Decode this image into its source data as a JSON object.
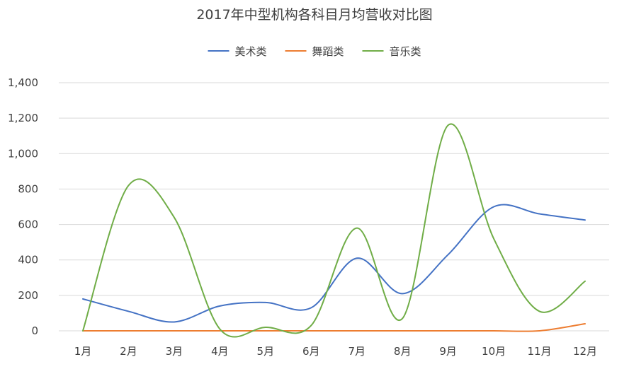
{
  "chart_data": {
    "type": "line",
    "title": "2017年中型机构各科目月均营收对比图",
    "xlabel": "",
    "ylabel": "",
    "categories": [
      "1月",
      "2月",
      "3月",
      "4月",
      "5月",
      "6月",
      "7月",
      "8月",
      "9月",
      "10月",
      "11月",
      "12月"
    ],
    "series": [
      {
        "name": "美术类",
        "color": "#4472c4",
        "values": [
          180,
          110,
          50,
          140,
          160,
          130,
          410,
          210,
          430,
          700,
          660,
          625
        ]
      },
      {
        "name": "舞蹈类",
        "color": "#ed7d31",
        "values": [
          0,
          0,
          0,
          0,
          0,
          0,
          0,
          0,
          0,
          0,
          0,
          40
        ]
      },
      {
        "name": "音乐类",
        "color": "#70ad47",
        "values": [
          0,
          820,
          640,
          10,
          20,
          30,
          580,
          70,
          1160,
          520,
          110,
          280
        ]
      }
    ],
    "ylim": [
      0,
      1400
    ],
    "yticks": [
      0,
      200,
      400,
      600,
      800,
      1000,
      1200,
      1400
    ],
    "ytick_labels": [
      "0",
      "200",
      "400",
      "600",
      "800",
      "1,000",
      "1,200",
      "1,400"
    ],
    "grid": true,
    "legend_position": "top"
  }
}
